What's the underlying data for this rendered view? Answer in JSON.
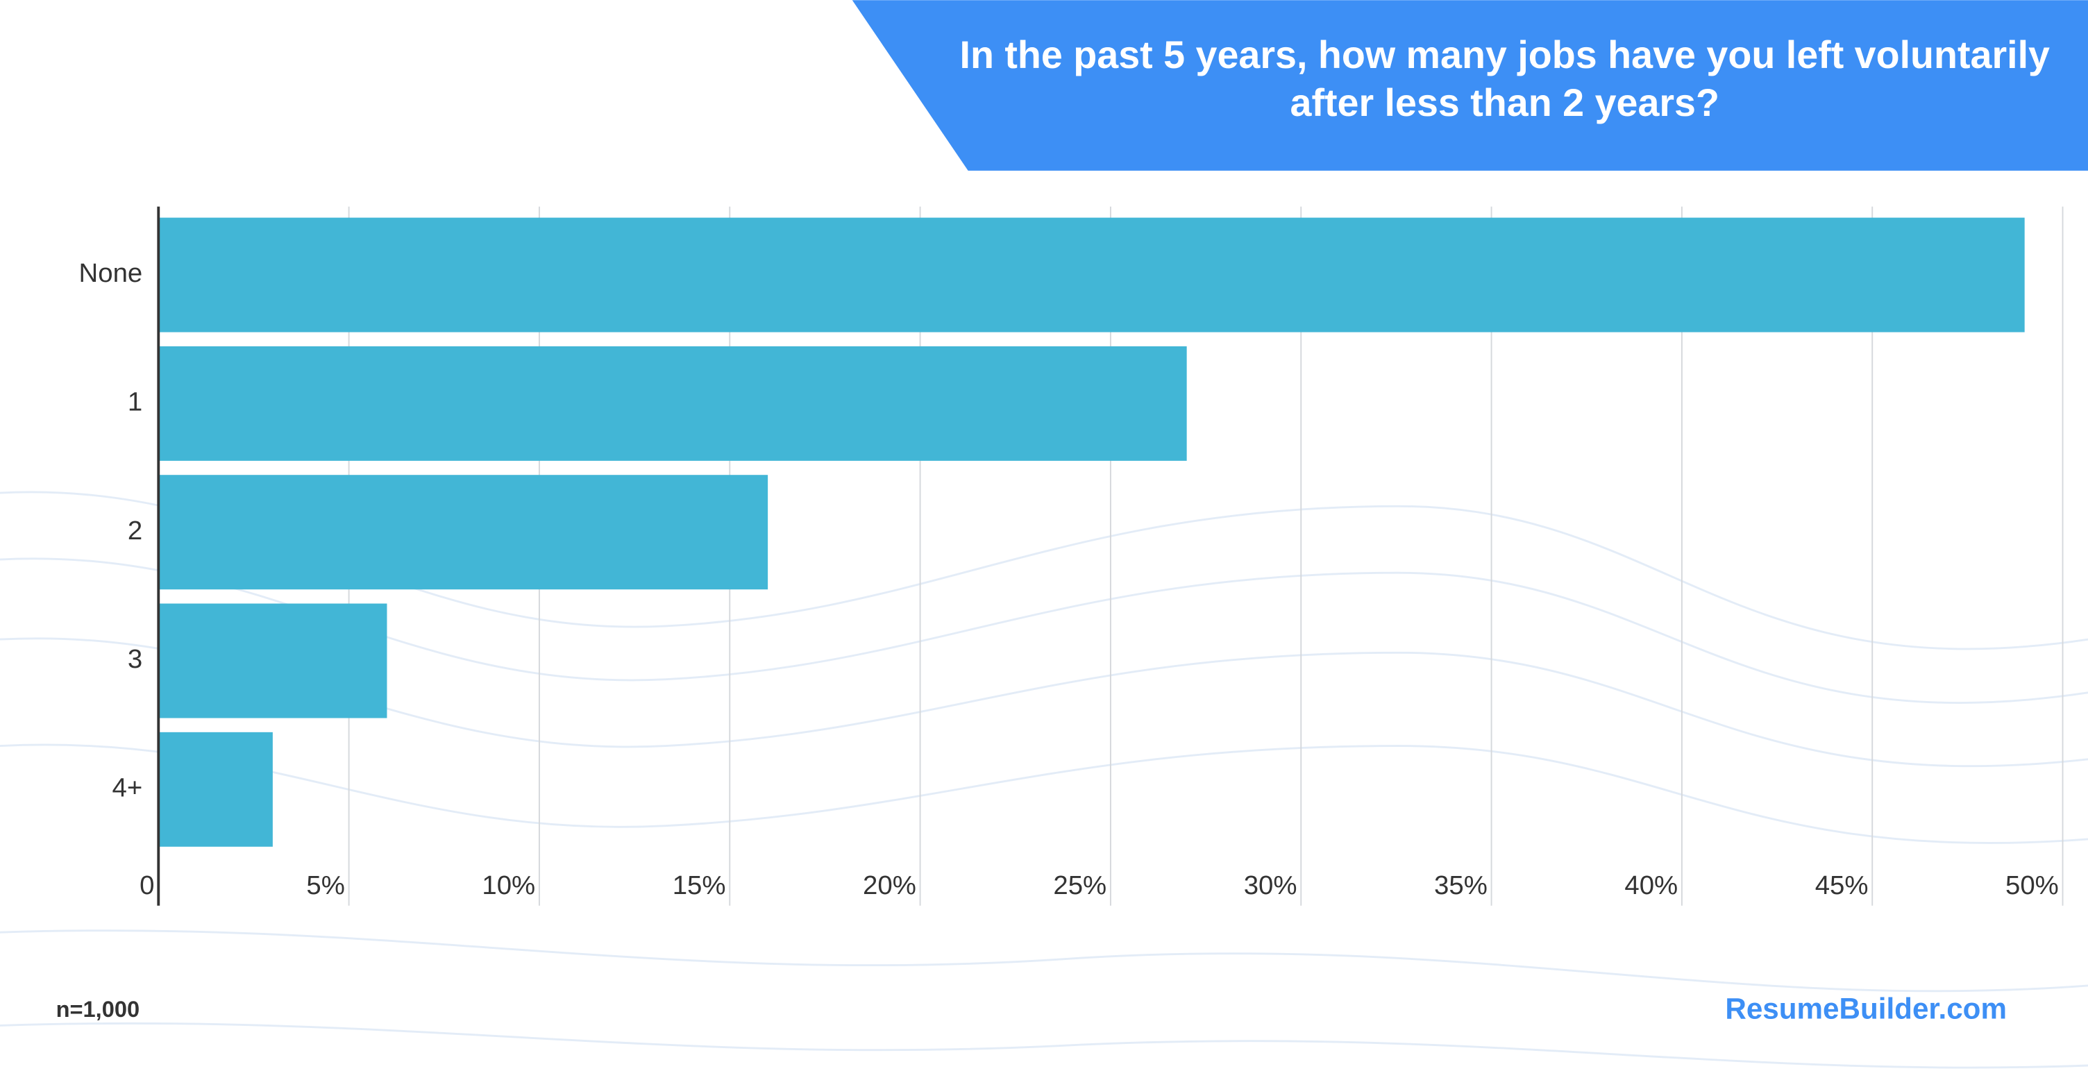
{
  "chart_data": {
    "type": "bar",
    "orientation": "horizontal",
    "title": "In the past 5 years, how many jobs have you left voluntarily after less than 2 years?",
    "categories": [
      "None",
      "1",
      "2",
      "3",
      "4+"
    ],
    "values": [
      49,
      27,
      16,
      6,
      3
    ],
    "color": "#42b6d6",
    "xlim": [
      0,
      50
    ],
    "xticks": [
      0,
      {
        "value": 5,
        "label": "5%"
      },
      {
        "value": 10,
        "label": "10%"
      },
      {
        "value": 15,
        "label": "15%"
      },
      {
        "value": 20,
        "label": "20%"
      },
      {
        "value": 25,
        "label": "25%"
      },
      {
        "value": 30,
        "label": "30%"
      },
      {
        "value": 35,
        "label": "35%"
      },
      {
        "value": 40,
        "label": "40%"
      },
      {
        "value": 45,
        "label": "45%"
      },
      {
        "value": 50,
        "label": "50%"
      }
    ],
    "grid": true,
    "note": "n=1,000",
    "source": "ResumeBuilder.com"
  }
}
